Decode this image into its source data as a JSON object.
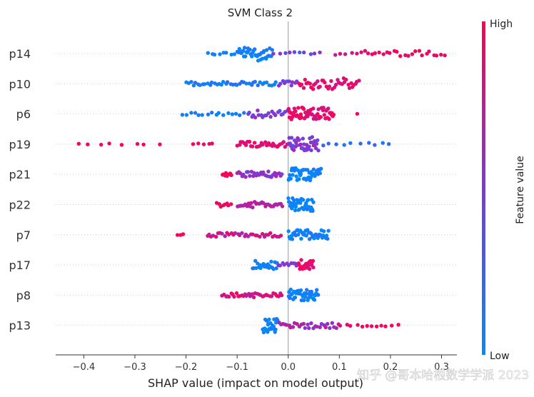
{
  "chart_data": {
    "type": "scatter",
    "subtype": "shap-beeswarm",
    "title": "SVM Class 2",
    "xlabel": "SHAP value (impact on model output)",
    "xlim": [
      -0.455,
      0.33
    ],
    "xticks": [
      -0.4,
      -0.3,
      -0.2,
      -0.1,
      0.0,
      0.1,
      0.2,
      0.3
    ],
    "xtick_labels": [
      "−0.4",
      "−0.3",
      "−0.2",
      "−0.1",
      "0.0",
      "0.1",
      "0.2",
      "0.3"
    ],
    "features": [
      "p14",
      "p10",
      "p6",
      "p19",
      "p21",
      "p22",
      "p7",
      "p17",
      "p8",
      "p13"
    ],
    "colorbar": {
      "label": "Feature value",
      "high_label": "High",
      "low_label": "Low",
      "low_color": "#008bfb",
      "high_color": "#ff0052"
    },
    "series": [
      {
        "name": "p14",
        "clusters": [
          {
            "from": -0.16,
            "to": -0.1,
            "n": 8,
            "c0": 0.0,
            "c1": 0.1,
            "w": 2
          },
          {
            "from": -0.1,
            "to": -0.03,
            "n": 40,
            "c0": 0.0,
            "c1": 0.15,
            "w": 10
          },
          {
            "from": -0.03,
            "to": 0.07,
            "n": 10,
            "c0": 0.2,
            "c1": 0.6,
            "w": 2
          },
          {
            "from": 0.09,
            "to": 0.14,
            "n": 5,
            "c0": 0.7,
            "c1": 0.85,
            "w": 2
          },
          {
            "from": 0.14,
            "to": 0.31,
            "n": 24,
            "c0": 0.85,
            "c1": 1.0,
            "w": 4
          }
        ]
      },
      {
        "name": "p10",
        "clusters": [
          {
            "from": -0.2,
            "to": -0.02,
            "n": 40,
            "c0": 0.0,
            "c1": 0.2,
            "w": 3
          },
          {
            "from": -0.02,
            "to": 0.02,
            "n": 10,
            "c0": 0.4,
            "c1": 0.6,
            "w": 4
          },
          {
            "from": 0.02,
            "to": 0.14,
            "n": 40,
            "c0": 0.8,
            "c1": 1.0,
            "w": 8
          }
        ]
      },
      {
        "name": "p6",
        "clusters": [
          {
            "from": -0.21,
            "to": -0.08,
            "n": 16,
            "c0": 0.0,
            "c1": 0.15,
            "w": 2
          },
          {
            "from": -0.08,
            "to": 0.0,
            "n": 22,
            "c0": 0.3,
            "c1": 0.6,
            "w": 5
          },
          {
            "from": 0.0,
            "to": 0.09,
            "n": 60,
            "c0": 0.8,
            "c1": 1.0,
            "w": 9
          },
          {
            "from": 0.13,
            "to": 0.14,
            "n": 1,
            "c0": 1.0,
            "c1": 1.0,
            "w": 1
          }
        ]
      },
      {
        "name": "p19",
        "clusters": [
          {
            "from": -0.42,
            "to": -0.24,
            "n": 8,
            "c0": 0.9,
            "c1": 1.0,
            "w": 1
          },
          {
            "from": -0.19,
            "to": -0.14,
            "n": 5,
            "c0": 0.85,
            "c1": 1.0,
            "w": 1
          },
          {
            "from": -0.1,
            "to": 0.0,
            "n": 30,
            "c0": 0.8,
            "c1": 0.95,
            "w": 4
          },
          {
            "from": 0.0,
            "to": 0.06,
            "n": 40,
            "c0": 0.35,
            "c1": 0.7,
            "w": 10
          },
          {
            "from": 0.06,
            "to": 0.21,
            "n": 10,
            "c0": 0.05,
            "c1": 0.25,
            "w": 2
          }
        ]
      },
      {
        "name": "p21",
        "clusters": [
          {
            "from": -0.13,
            "to": -0.11,
            "n": 8,
            "c0": 0.9,
            "c1": 1.0,
            "w": 3
          },
          {
            "from": -0.1,
            "to": -0.01,
            "n": 30,
            "c0": 0.45,
            "c1": 0.7,
            "w": 4
          },
          {
            "from": 0.0,
            "to": 0.065,
            "n": 45,
            "c0": 0.0,
            "c1": 0.1,
            "w": 9
          }
        ]
      },
      {
        "name": "p22",
        "clusters": [
          {
            "from": -0.14,
            "to": -0.11,
            "n": 8,
            "c0": 0.9,
            "c1": 1.0,
            "w": 3
          },
          {
            "from": -0.1,
            "to": -0.01,
            "n": 30,
            "c0": 0.55,
            "c1": 0.8,
            "w": 4
          },
          {
            "from": 0.0,
            "to": 0.05,
            "n": 45,
            "c0": 0.0,
            "c1": 0.1,
            "w": 9
          }
        ]
      },
      {
        "name": "p7",
        "clusters": [
          {
            "from": -0.22,
            "to": -0.2,
            "n": 3,
            "c0": 0.95,
            "c1": 1.0,
            "w": 1
          },
          {
            "from": -0.16,
            "to": -0.01,
            "n": 35,
            "c0": 0.65,
            "c1": 0.9,
            "w": 3
          },
          {
            "from": 0.0,
            "to": 0.08,
            "n": 45,
            "c0": 0.0,
            "c1": 0.15,
            "w": 7
          }
        ]
      },
      {
        "name": "p17",
        "clusters": [
          {
            "from": -0.07,
            "to": -0.02,
            "n": 22,
            "c0": 0.0,
            "c1": 0.15,
            "w": 6
          },
          {
            "from": -0.02,
            "to": 0.02,
            "n": 10,
            "c0": 0.4,
            "c1": 0.6,
            "w": 3
          },
          {
            "from": 0.02,
            "to": 0.05,
            "n": 25,
            "c0": 0.85,
            "c1": 1.0,
            "w": 7
          }
        ]
      },
      {
        "name": "p8",
        "clusters": [
          {
            "from": -0.13,
            "to": -0.01,
            "n": 35,
            "c0": 0.7,
            "c1": 0.95,
            "w": 3
          },
          {
            "from": 0.0,
            "to": 0.06,
            "n": 40,
            "c0": 0.0,
            "c1": 0.12,
            "w": 8
          }
        ]
      },
      {
        "name": "p13",
        "clusters": [
          {
            "from": -0.05,
            "to": -0.02,
            "n": 30,
            "c0": 0.0,
            "c1": 0.1,
            "w": 10
          },
          {
            "from": -0.02,
            "to": 0.1,
            "n": 30,
            "c0": 0.45,
            "c1": 0.8,
            "w": 4
          },
          {
            "from": 0.1,
            "to": 0.22,
            "n": 12,
            "c0": 0.85,
            "c1": 1.0,
            "w": 2
          }
        ]
      }
    ]
  },
  "watermark": "知乎 @哥本哈根数学学派 2023"
}
